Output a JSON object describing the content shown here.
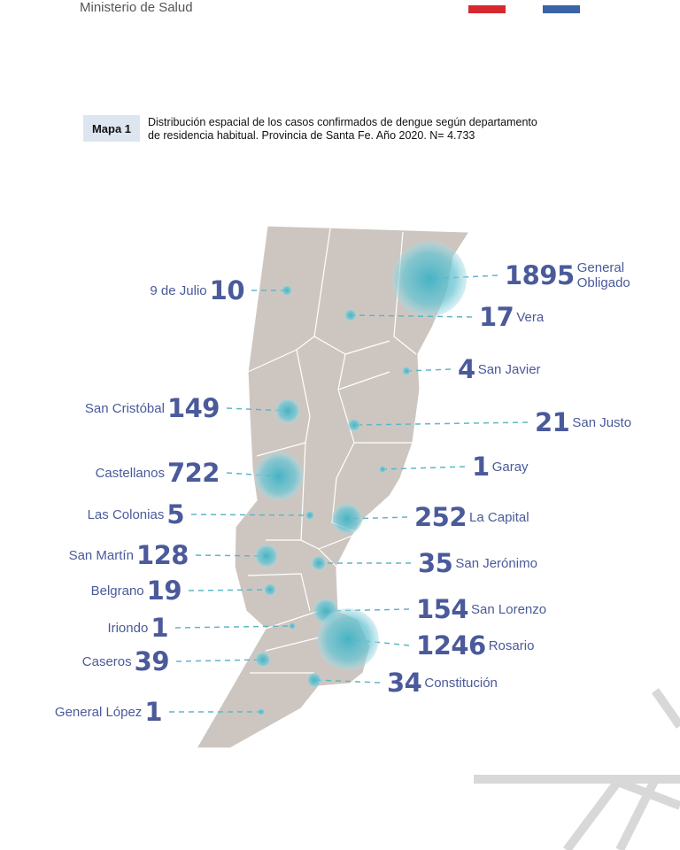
{
  "header": {
    "org": "Ministerio de Salud"
  },
  "caption": {
    "label": "Mapa 1",
    "text_lines": [
      "Distribución espacial de los casos confirmados de dengue según departamento",
      "de residencia habitual. Provincia de Santa Fe. Año 2020. N= 4.733"
    ]
  },
  "departments": [
    {
      "name": "9 de Julio",
      "cases": 10
    },
    {
      "name": "San Cristóbal",
      "cases": 149
    },
    {
      "name": "Castellanos",
      "cases": 722
    },
    {
      "name": "Las Colonias",
      "cases": 5
    },
    {
      "name": "San Martín",
      "cases": 128
    },
    {
      "name": "Belgrano",
      "cases": 19
    },
    {
      "name": "Iriondo",
      "cases": 1
    },
    {
      "name": "Caseros",
      "cases": 39
    },
    {
      "name": "General López",
      "cases": 1
    },
    {
      "name": "General Obligado",
      "cases": 1895
    },
    {
      "name": "Vera",
      "cases": 17
    },
    {
      "name": "San Javier",
      "cases": 4
    },
    {
      "name": "San Justo",
      "cases": 21
    },
    {
      "name": "Garay",
      "cases": 1
    },
    {
      "name": "La Capital",
      "cases": 252
    },
    {
      "name": "San Jerónimo",
      "cases": 35
    },
    {
      "name": "San Lorenzo",
      "cases": 154
    },
    {
      "name": "Rosario",
      "cases": 1246
    },
    {
      "name": "Constitución",
      "cases": 34
    }
  ]
}
